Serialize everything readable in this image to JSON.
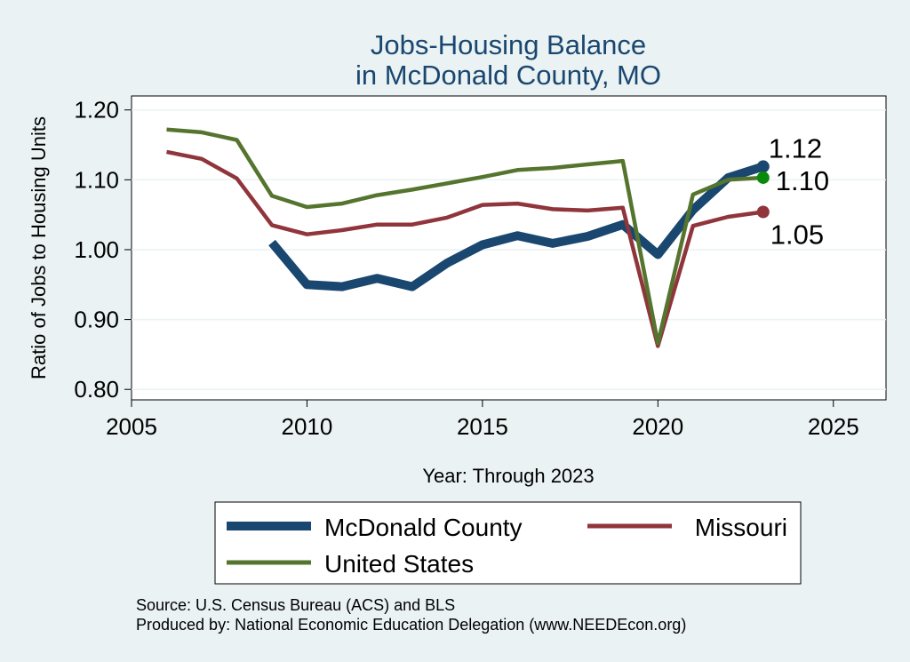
{
  "chart_data": {
    "type": "line",
    "title": "Jobs-Housing Balance",
    "subtitle": "in McDonald County, MO",
    "xlabel": "Year: Through 2023",
    "ylabel": "Ratio of Jobs to Housing Units",
    "xlim": [
      2005,
      2026.5
    ],
    "ylim": [
      0.785,
      1.22
    ],
    "xticks": [
      2005,
      2010,
      2015,
      2020,
      2025
    ],
    "yticks": [
      0.8,
      0.9,
      1.0,
      1.1,
      1.2
    ],
    "ytick_labels": [
      "0.80",
      "0.90",
      "1.00",
      "1.10",
      "1.20"
    ],
    "grid": true,
    "legend_position": "bottom",
    "series": [
      {
        "name": "McDonald County",
        "color": "#1a476f",
        "x": [
          2009,
          2010,
          2011,
          2012,
          2013,
          2014,
          2015,
          2016,
          2017,
          2018,
          2019,
          2020,
          2021,
          2022,
          2023
        ],
        "values": [
          1.01,
          0.95,
          0.947,
          0.959,
          0.947,
          0.981,
          1.007,
          1.02,
          1.009,
          1.019,
          1.036,
          0.993,
          1.057,
          1.103,
          1.119
        ],
        "end_label": "1.12"
      },
      {
        "name": "Missouri",
        "color": "#90353b",
        "x": [
          2006,
          2007,
          2008,
          2009,
          2010,
          2011,
          2012,
          2013,
          2014,
          2015,
          2016,
          2017,
          2018,
          2019,
          2020,
          2021,
          2022,
          2023
        ],
        "values": [
          1.14,
          1.13,
          1.102,
          1.035,
          1.022,
          1.028,
          1.036,
          1.036,
          1.046,
          1.064,
          1.066,
          1.058,
          1.056,
          1.06,
          0.862,
          1.034,
          1.047,
          1.054
        ],
        "end_label": "1.05"
      },
      {
        "name": "United States",
        "color": "#55752f",
        "x": [
          2006,
          2007,
          2008,
          2009,
          2010,
          2011,
          2012,
          2013,
          2014,
          2015,
          2016,
          2017,
          2018,
          2019,
          2020,
          2021,
          2022,
          2023
        ],
        "values": [
          1.172,
          1.168,
          1.157,
          1.077,
          1.061,
          1.066,
          1.078,
          1.086,
          1.095,
          1.104,
          1.114,
          1.117,
          1.122,
          1.127,
          0.866,
          1.079,
          1.1,
          1.103
        ],
        "end_label": "1.10",
        "end_marker_color": "#0a8a0a"
      }
    ]
  },
  "legend": {
    "items": [
      "McDonald County",
      "Missouri",
      "United States"
    ]
  },
  "notes": {
    "source": "Source: U.S. Census Bureau (ACS) and BLS",
    "produced_by": "Produced by: National Economic Education Delegation (www.NEEDEcon.org)"
  }
}
